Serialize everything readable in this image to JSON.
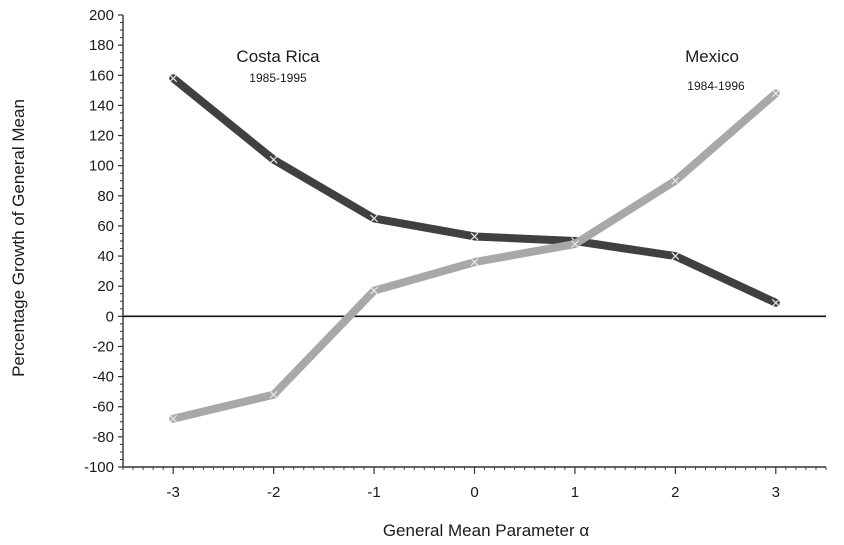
{
  "chart_data": {
    "type": "line",
    "xlabel": "General Mean Parameter α",
    "ylabel": "Percentage Growth of General Mean",
    "xlim": [
      -3.5,
      3.5
    ],
    "ylim": [
      -100,
      200
    ],
    "x": [
      -3,
      -2,
      -1,
      0,
      1,
      2,
      3
    ],
    "x_ticks": [
      -3,
      -2,
      -1,
      0,
      1,
      2,
      3
    ],
    "y_ticks": [
      -100,
      -80,
      -60,
      -40,
      -20,
      0,
      20,
      40,
      60,
      80,
      100,
      120,
      140,
      160,
      180,
      200
    ],
    "zero_line": true,
    "grid": false,
    "series": [
      {
        "name": "Costa Rica",
        "period": "1985-1995",
        "color": "#404040",
        "values": [
          158,
          104,
          65,
          53,
          50,
          40,
          9
        ]
      },
      {
        "name": "Mexico",
        "period": "1984-1996",
        "color": "#a8a8a8",
        "values": [
          -68,
          -52,
          17,
          36,
          48,
          90,
          148
        ]
      }
    ]
  }
}
